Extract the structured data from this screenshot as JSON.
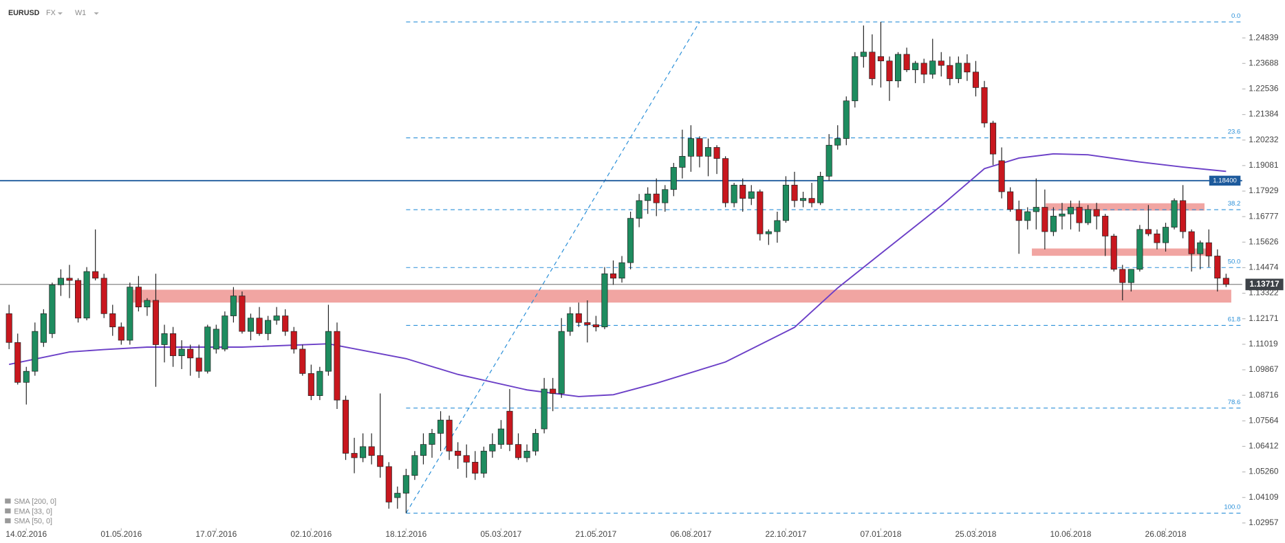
{
  "header": {
    "symbol": "EURUSD",
    "market": "FX",
    "interval": "W1"
  },
  "indicators": [
    "SMA [200, 0]",
    "EMA [33, 0]",
    "SMA [50, 0]"
  ],
  "chart_data": {
    "type": "candlestick",
    "up_color": "#1e8c5f",
    "down_color": "#c8171e",
    "xlim": [
      -1.05,
      142.1
    ],
    "ylim": [
      1.0261,
      1.2655
    ],
    "xticks": [
      {
        "value": 2,
        "label": "14.02.2016"
      },
      {
        "value": 13,
        "label": "01.05.2016"
      },
      {
        "value": 24,
        "label": "17.07.2016"
      },
      {
        "value": 35,
        "label": "02.10.2016"
      },
      {
        "value": 46,
        "label": "18.12.2016"
      },
      {
        "value": 57,
        "label": "05.03.2017"
      },
      {
        "value": 68,
        "label": "21.05.2017"
      },
      {
        "value": 79,
        "label": "06.08.2017"
      },
      {
        "value": 90,
        "label": "22.10.2017"
      },
      {
        "value": 101,
        "label": "07.01.2018"
      },
      {
        "value": 112,
        "label": "25.03.2018"
      },
      {
        "value": 123,
        "label": "10.06.2018"
      },
      {
        "value": 134,
        "label": "26.08.2018"
      }
    ],
    "yticks": [
      1.24839,
      1.23688,
      1.22536,
      1.21384,
      1.20232,
      1.19081,
      1.17929,
      1.16777,
      1.15626,
      1.14474,
      1.13322,
      1.12171,
      1.11019,
      1.09867,
      1.08716,
      1.07564,
      1.06412,
      {
        "value": 1.0526,
        "label": "1.05260"
      },
      1.04109,
      1.02957
    ],
    "candles": [
      [
        1.124,
        1.128,
        1.108,
        1.111
      ],
      [
        1.111,
        1.115,
        1.092,
        1.093
      ],
      [
        1.093,
        1.1,
        1.083,
        1.098
      ],
      [
        1.098,
        1.12,
        1.096,
        1.116
      ],
      [
        1.111,
        1.126,
        1.109,
        1.124
      ],
      [
        1.115,
        1.138,
        1.113,
        1.137
      ],
      [
        1.137,
        1.144,
        1.132,
        1.14
      ],
      [
        1.14,
        1.146,
        1.131,
        1.139
      ],
      [
        1.139,
        1.14,
        1.12,
        1.122
      ],
      [
        1.122,
        1.145,
        1.121,
        1.143
      ],
      [
        1.143,
        1.162,
        1.139,
        1.14
      ],
      [
        1.14,
        1.142,
        1.122,
        1.124
      ],
      [
        1.124,
        1.128,
        1.114,
        1.118
      ],
      [
        1.118,
        1.12,
        1.11,
        1.112
      ],
      [
        1.112,
        1.138,
        1.11,
        1.136
      ],
      [
        1.136,
        1.141,
        1.125,
        1.127
      ],
      [
        1.127,
        1.131,
        1.123,
        1.13
      ],
      [
        1.13,
        1.142,
        1.091,
        1.11
      ],
      [
        1.11,
        1.119,
        1.102,
        1.115
      ],
      [
        1.115,
        1.118,
        1.1,
        1.105
      ],
      [
        1.105,
        1.112,
        1.099,
        1.108
      ],
      [
        1.108,
        1.11,
        1.096,
        1.104
      ],
      [
        1.104,
        1.11,
        1.095,
        1.098
      ],
      [
        1.098,
        1.119,
        1.097,
        1.118
      ],
      [
        1.108,
        1.119,
        1.106,
        1.117
      ],
      [
        1.108,
        1.125,
        1.107,
        1.123
      ],
      [
        1.123,
        1.136,
        1.12,
        1.132
      ],
      [
        1.132,
        1.134,
        1.115,
        1.116
      ],
      [
        1.116,
        1.124,
        1.112,
        1.122
      ],
      [
        1.122,
        1.127,
        1.114,
        1.115
      ],
      [
        1.115,
        1.123,
        1.112,
        1.121
      ],
      [
        1.121,
        1.127,
        1.119,
        1.123
      ],
      [
        1.123,
        1.126,
        1.114,
        1.116
      ],
      [
        1.116,
        1.118,
        1.106,
        1.108
      ],
      [
        1.108,
        1.11,
        1.096,
        1.097
      ],
      [
        1.097,
        1.101,
        1.085,
        1.087
      ],
      [
        1.087,
        1.1,
        1.085,
        1.098
      ],
      [
        1.098,
        1.128,
        1.096,
        1.116
      ],
      [
        1.116,
        1.12,
        1.081,
        1.085
      ],
      [
        1.085,
        1.087,
        1.058,
        1.061
      ],
      [
        1.061,
        1.068,
        1.052,
        1.059
      ],
      [
        1.059,
        1.07,
        1.057,
        1.064
      ],
      [
        1.064,
        1.07,
        1.056,
        1.06
      ],
      [
        1.06,
        1.088,
        1.05,
        1.055
      ],
      [
        1.055,
        1.057,
        1.036,
        1.039
      ],
      [
        1.041,
        1.046,
        1.036,
        1.043
      ],
      [
        1.043,
        1.054,
        1.034,
        1.051
      ],
      [
        1.051,
        1.062,
        1.049,
        1.06
      ],
      [
        1.06,
        1.07,
        1.056,
        1.065
      ],
      [
        1.065,
        1.072,
        1.059,
        1.07
      ],
      [
        1.07,
        1.08,
        1.062,
        1.076
      ],
      [
        1.076,
        1.078,
        1.058,
        1.062
      ],
      [
        1.062,
        1.066,
        1.054,
        1.06
      ],
      [
        1.06,
        1.065,
        1.05,
        1.057
      ],
      [
        1.057,
        1.062,
        1.049,
        1.052
      ],
      [
        1.052,
        1.064,
        1.05,
        1.062
      ],
      [
        1.062,
        1.07,
        1.059,
        1.065
      ],
      [
        1.065,
        1.076,
        1.063,
        1.072
      ],
      [
        1.08,
        1.09,
        1.062,
        1.065
      ],
      [
        1.065,
        1.07,
        1.058,
        1.059
      ],
      [
        1.059,
        1.065,
        1.057,
        1.062
      ],
      [
        1.062,
        1.072,
        1.06,
        1.07
      ],
      [
        1.072,
        1.095,
        1.07,
        1.09
      ],
      [
        1.09,
        1.095,
        1.08,
        1.088
      ],
      [
        1.088,
        1.122,
        1.086,
        1.116
      ],
      [
        1.116,
        1.127,
        1.114,
        1.124
      ],
      [
        1.124,
        1.129,
        1.118,
        1.12
      ],
      [
        1.12,
        1.13,
        1.111,
        1.119
      ],
      [
        1.119,
        1.123,
        1.116,
        1.118
      ],
      [
        1.118,
        1.145,
        1.117,
        1.142
      ],
      [
        1.142,
        1.148,
        1.137,
        1.14
      ],
      [
        1.14,
        1.15,
        1.138,
        1.147
      ],
      [
        1.147,
        1.17,
        1.144,
        1.167
      ],
      [
        1.167,
        1.178,
        1.163,
        1.175
      ],
      [
        1.175,
        1.181,
        1.169,
        1.178
      ],
      [
        1.178,
        1.185,
        1.168,
        1.174
      ],
      [
        1.174,
        1.182,
        1.17,
        1.18
      ],
      [
        1.18,
        1.192,
        1.177,
        1.19
      ],
      [
        1.19,
        1.207,
        1.185,
        1.195
      ],
      [
        1.195,
        1.209,
        1.188,
        1.203
      ],
      [
        1.203,
        1.204,
        1.19,
        1.195
      ],
      [
        1.195,
        1.203,
        1.186,
        1.199
      ],
      [
        1.199,
        1.2,
        1.187,
        1.194
      ],
      [
        1.194,
        1.195,
        1.172,
        1.174
      ],
      [
        1.174,
        1.183,
        1.172,
        1.182
      ],
      [
        1.182,
        1.185,
        1.17,
        1.176
      ],
      [
        1.176,
        1.182,
        1.173,
        1.179
      ],
      [
        1.179,
        1.18,
        1.157,
        1.16
      ],
      [
        1.16,
        1.162,
        1.155,
        1.161
      ],
      [
        1.161,
        1.17,
        1.156,
        1.166
      ],
      [
        1.166,
        1.186,
        1.165,
        1.182
      ],
      [
        1.182,
        1.188,
        1.172,
        1.175
      ],
      [
        1.175,
        1.179,
        1.172,
        1.176
      ],
      [
        1.176,
        1.183,
        1.172,
        1.174
      ],
      [
        1.174,
        1.188,
        1.173,
        1.186
      ],
      [
        1.186,
        1.205,
        1.184,
        1.2
      ],
      [
        1.2,
        1.209,
        1.198,
        1.203
      ],
      [
        1.203,
        1.222,
        1.2,
        1.22
      ],
      [
        1.22,
        1.242,
        1.217,
        1.24
      ],
      [
        1.24,
        1.254,
        1.235,
        1.242
      ],
      [
        1.242,
        1.25,
        1.227,
        1.23
      ],
      [
        1.24,
        1.2556,
        1.226,
        1.238
      ],
      [
        1.238,
        1.24,
        1.22,
        1.229
      ],
      [
        1.229,
        1.242,
        1.226,
        1.241
      ],
      [
        1.241,
        1.244,
        1.233,
        1.234
      ],
      [
        1.234,
        1.238,
        1.228,
        1.237
      ],
      [
        1.237,
        1.239,
        1.228,
        1.232
      ],
      [
        1.232,
        1.248,
        1.23,
        1.238
      ],
      [
        1.238,
        1.242,
        1.231,
        1.236
      ],
      [
        1.236,
        1.24,
        1.227,
        1.23
      ],
      [
        1.23,
        1.24,
        1.228,
        1.237
      ],
      [
        1.237,
        1.241,
        1.229,
        1.233
      ],
      [
        1.233,
        1.238,
        1.222,
        1.226
      ],
      [
        1.226,
        1.229,
        1.208,
        1.21
      ],
      [
        1.21,
        1.211,
        1.191,
        1.196
      ],
      [
        1.193,
        1.199,
        1.176,
        1.179
      ],
      [
        1.179,
        1.181,
        1.17,
        1.171
      ],
      [
        1.171,
        1.175,
        1.151,
        1.166
      ],
      [
        1.166,
        1.172,
        1.162,
        1.17
      ],
      [
        1.17,
        1.185,
        1.162,
        1.172
      ],
      [
        1.172,
        1.18,
        1.153,
        1.161
      ],
      [
        1.161,
        1.172,
        1.159,
        1.168
      ],
      [
        1.168,
        1.174,
        1.162,
        1.169
      ],
      [
        1.169,
        1.175,
        1.162,
        1.172
      ],
      [
        1.172,
        1.175,
        1.161,
        1.165
      ],
      [
        1.165,
        1.173,
        1.164,
        1.171
      ],
      [
        1.171,
        1.174,
        1.162,
        1.168
      ],
      [
        1.168,
        1.169,
        1.15,
        1.159
      ],
      [
        1.159,
        1.16,
        1.143,
        1.144
      ],
      [
        1.144,
        1.146,
        1.13,
        1.138
      ],
      [
        1.138,
        1.144,
        1.134,
        1.144
      ],
      [
        1.144,
        1.164,
        1.143,
        1.162
      ],
      [
        1.162,
        1.173,
        1.159,
        1.16
      ],
      [
        1.16,
        1.162,
        1.153,
        1.156
      ],
      [
        1.156,
        1.165,
        1.152,
        1.163
      ],
      [
        1.163,
        1.176,
        1.162,
        1.175
      ],
      [
        1.175,
        1.182,
        1.158,
        1.161
      ],
      [
        1.161,
        1.162,
        1.143,
        1.151
      ],
      [
        1.151,
        1.157,
        1.144,
        1.156
      ],
      [
        1.156,
        1.162,
        1.145,
        1.15
      ],
      [
        1.15,
        1.153,
        1.134,
        1.14
      ],
      [
        1.14,
        1.142,
        1.136,
        1.1372
      ]
    ],
    "sma": {
      "color": "#6b3fc7",
      "x": [
        0,
        7,
        11,
        16,
        27,
        37,
        46,
        52,
        60,
        66,
        70,
        75,
        83,
        91,
        96,
        102,
        108,
        113,
        117,
        121,
        125,
        131,
        136,
        141
      ],
      "values": [
        1.1011,
        1.1067,
        1.1078,
        1.1089,
        1.1089,
        1.1104,
        1.1037,
        1.0966,
        1.0896,
        1.0866,
        1.0874,
        1.0926,
        1.1022,
        1.1178,
        1.1356,
        1.1542,
        1.1727,
        1.1894,
        1.1942,
        1.1961,
        1.1957,
        1.1924,
        1.1901,
        1.1882
      ]
    },
    "fibonacci": {
      "from": 46,
      "to": 80,
      "color": "#2a8fd8",
      "levels": [
        {
          "label": "0.0",
          "price": 1.2556
        },
        {
          "label": "23.6",
          "price": 1.2033
        },
        {
          "label": "38.2",
          "price": 1.1709
        },
        {
          "label": "50.0",
          "price": 1.1448
        },
        {
          "label": "61.8",
          "price": 1.1187
        },
        {
          "label": "78.6",
          "price": 1.0814
        },
        {
          "label": "100.0",
          "price": 1.034
        }
      ]
    },
    "zones": [
      {
        "low": 1.129,
        "high": 1.1348,
        "from": 13.7,
        "to": 141.6
      },
      {
        "low": 1.1705,
        "high": 1.1738,
        "from": 120.1,
        "to": 138.5
      },
      {
        "low": 1.1501,
        "high": 1.1534,
        "from": 118.5,
        "to": 139
      }
    ],
    "price_line": {
      "value": 1.184,
      "label": "1.18400",
      "color": "#1d5a9c"
    },
    "last_price": 1.13717
  }
}
